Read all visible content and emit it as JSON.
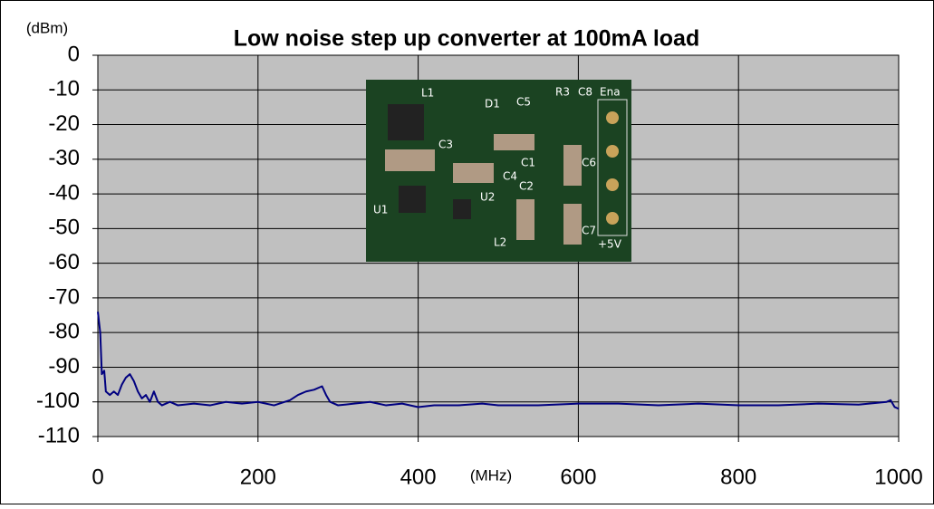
{
  "chart_data": {
    "type": "line",
    "title": "Low noise step up converter at 100mA load",
    "y_label": "(dBm)",
    "x_label": "(MHz)",
    "xlim": [
      0,
      1000
    ],
    "xticks": [
      0,
      200,
      400,
      600,
      800,
      1000
    ],
    "ylim": [
      -110,
      0
    ],
    "yticks": [
      0,
      -10,
      -20,
      -30,
      -40,
      -50,
      -60,
      -70,
      -80,
      -90,
      -100,
      -110
    ],
    "grid": true,
    "background": "#c0c0c0",
    "x": [
      0,
      3,
      5,
      8,
      10,
      15,
      20,
      25,
      30,
      35,
      40,
      45,
      50,
      55,
      60,
      65,
      70,
      75,
      80,
      90,
      100,
      120,
      140,
      160,
      180,
      200,
      220,
      240,
      250,
      260,
      270,
      280,
      285,
      290,
      300,
      320,
      340,
      360,
      380,
      400,
      420,
      450,
      480,
      500,
      550,
      600,
      650,
      700,
      750,
      800,
      850,
      900,
      950,
      985,
      990,
      995,
      1000
    ],
    "series": [
      {
        "color": "#000080",
        "values": [
          -74,
          -80,
          -92,
          -91,
          -97,
          -98,
          -97,
          -98,
          -95,
          -93,
          -92,
          -94,
          -97,
          -99,
          -98,
          -100,
          -97,
          -100,
          -101,
          -100,
          -101,
          -100.5,
          -101,
          -100,
          -100.5,
          -100,
          -101,
          -99.5,
          -98,
          -97,
          -96.5,
          -95.5,
          -98,
          -100,
          -101,
          -100.5,
          -100,
          -101,
          -100.5,
          -101.5,
          -101,
          -101,
          -100.5,
          -101,
          -101,
          -100.5,
          -100.5,
          -101,
          -100.5,
          -101,
          -101,
          -100.5,
          -100.8,
          -100,
          -99.5,
          -101.5,
          -102
        ]
      }
    ]
  },
  "inset": {
    "labels": [
      "L1",
      "D1",
      "C5",
      "R3",
      "C8",
      "Ena",
      "C3",
      "C1",
      "C4",
      "C2",
      "C6",
      "U2",
      "U1",
      "L2",
      "C7",
      "+5V"
    ]
  }
}
